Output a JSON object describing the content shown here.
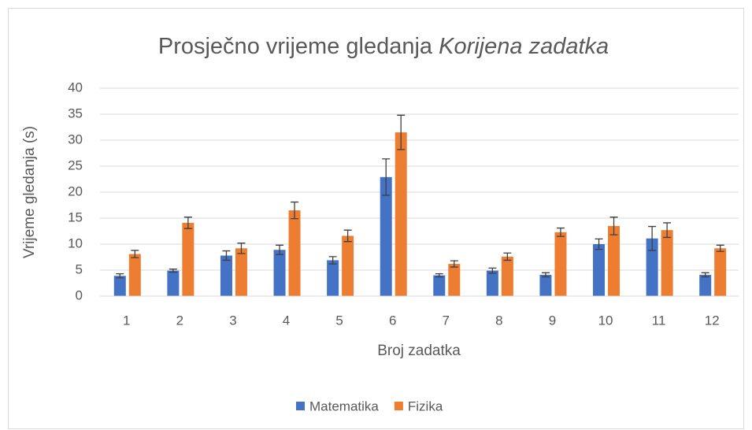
{
  "chart_data": {
    "type": "bar",
    "title": {
      "text": "Prosječno vrijeme gledanja",
      "emphasis": "Korijena zadatka"
    },
    "x_label": "Broj zadatka",
    "y_label": "Vrijeme gledanja (s)",
    "categories": [
      "1",
      "2",
      "3",
      "4",
      "5",
      "6",
      "7",
      "8",
      "9",
      "10",
      "11",
      "12"
    ],
    "series": [
      {
        "name": "Matematika",
        "color": "#4472c4",
        "values": [
          3.9,
          4.9,
          7.8,
          8.9,
          6.9,
          22.9,
          4.0,
          4.9,
          4.1,
          10.0,
          11.1,
          4.1
        ],
        "errors": [
          0.4,
          0.3,
          0.9,
          0.9,
          0.7,
          3.5,
          0.3,
          0.5,
          0.4,
          1.0,
          2.3,
          0.4
        ]
      },
      {
        "name": "Fizika",
        "color": "#ed7d31",
        "values": [
          8.1,
          14.1,
          9.2,
          16.5,
          11.6,
          31.5,
          6.2,
          7.6,
          12.3,
          13.5,
          12.7,
          9.2
        ],
        "errors": [
          0.7,
          1.1,
          1.0,
          1.6,
          1.1,
          3.3,
          0.6,
          0.7,
          0.8,
          1.7,
          1.4,
          0.6
        ]
      }
    ],
    "ylim": [
      0,
      40
    ],
    "yticks": [
      0,
      5,
      10,
      15,
      20,
      25,
      30,
      35,
      40
    ],
    "grid": true,
    "legend": "bottom"
  }
}
